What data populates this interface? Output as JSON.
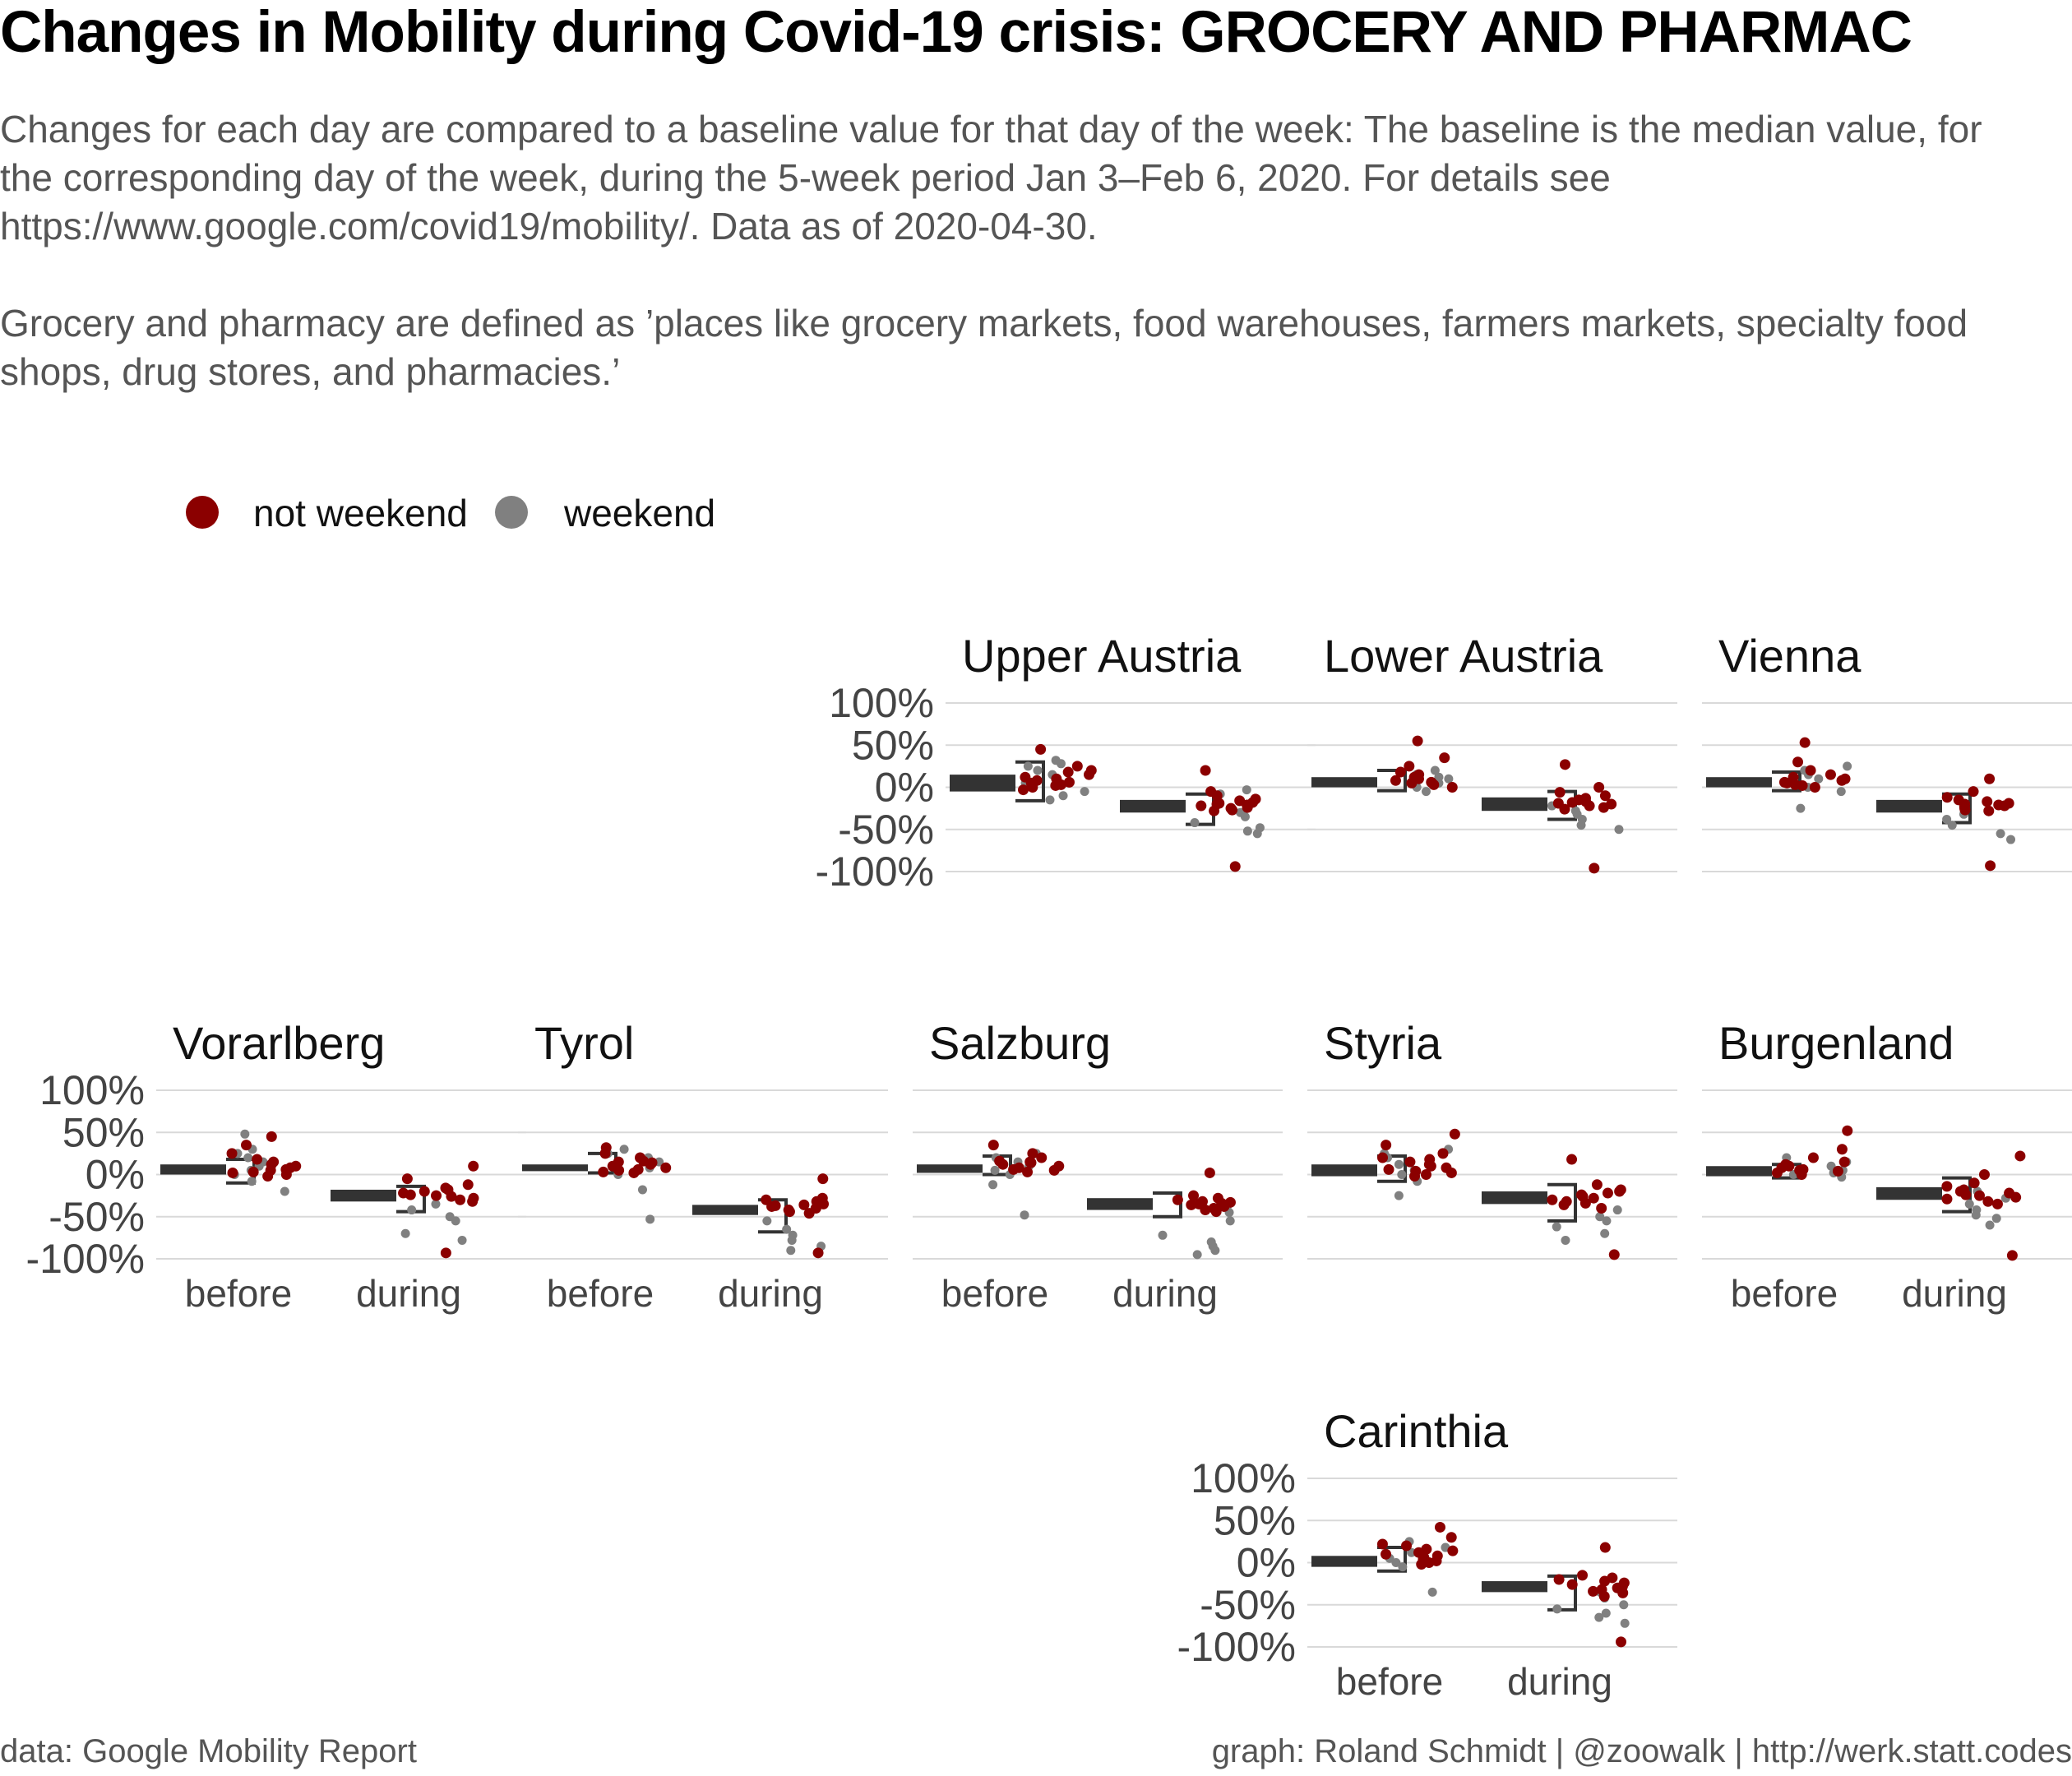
{
  "title": "Changes in Mobility during Covid-19 crisis: GROCERY AND PHARMAC",
  "subtitle_lines": [
    "Changes for each day are compared to a baseline value for that day of the week: The baseline is the median value, for the corresponding day of the week, during the 5-week period Jan 3–Feb 6, 2020. For details see https://www.google.com/covid19/mobility/. Data as of 2020-04-30.",
    "Grocery and pharmacy are defined as ’places like grocery markets, food warehouses, farmers markets, specialty food shops, drug stores, and pharmacies.’"
  ],
  "caption_left": "data: Google Mobility Report",
  "caption_right": "graph: Roland Schmidt | @zoowalk | http://werk.statt.codes",
  "colors": {
    "not_weekend": "#8B0000",
    "weekend": "#808080",
    "box": "#333333",
    "grid": "#D9D9D9"
  },
  "chart_data": {
    "type": "scatter",
    "legend": {
      "position": "top-left",
      "entries": [
        {
          "key": "not_weekend",
          "label": "not weekend"
        },
        {
          "key": "weekend",
          "label": "weekend"
        }
      ]
    },
    "y_ticks": [
      100,
      50,
      0,
      -50,
      -100
    ],
    "y_tick_labels": [
      "100%",
      "50%",
      "0%",
      "-50%",
      "-100%"
    ],
    "ylim": [
      -100,
      100
    ],
    "categories": [
      "before",
      "during"
    ],
    "grid": true,
    "panels": [
      {
        "name": "Upper Austria",
        "show_y_axis": true,
        "show_x_labels": false,
        "box": {
          "before": {
            "q1": -5,
            "median": 5,
            "q3": 15,
            "whisker_low": -16,
            "whisker_high": 30
          },
          "during": {
            "q1": -30,
            "median": -22,
            "q3": -15,
            "whisker_low": -44,
            "whisker_high": -8
          }
        },
        "not_weekend": {
          "before": [
            45,
            25,
            18,
            12,
            10,
            8,
            6,
            5,
            3,
            2,
            0,
            -3,
            15,
            20
          ],
          "during": [
            20,
            -5,
            -10,
            -14,
            -16,
            -18,
            -19,
            -20,
            -21,
            -22,
            -24,
            -25,
            -27,
            -28,
            -94
          ]
        },
        "weekend": {
          "before": [
            32,
            28,
            25,
            20,
            15,
            8,
            5,
            -5,
            -10,
            -15
          ],
          "during": [
            -3,
            -8,
            -30,
            -35,
            -42,
            -48,
            -52,
            -55
          ]
        }
      },
      {
        "name": "Lower Austria",
        "show_y_axis": false,
        "show_x_labels": false,
        "box": {
          "before": {
            "q1": 0,
            "median": 6,
            "q3": 12,
            "whisker_low": -4,
            "whisker_high": 20
          },
          "during": {
            "q1": -28,
            "median": -20,
            "q3": -12,
            "whisker_low": -38,
            "whisker_high": -5
          }
        },
        "not_weekend": {
          "before": [
            55,
            35,
            25,
            18,
            12,
            10,
            8,
            6,
            5,
            3,
            0,
            15
          ],
          "during": [
            27,
            0,
            -6,
            -10,
            -13,
            -15,
            -17,
            -18,
            -19,
            -20,
            -22,
            -24,
            -26,
            -96
          ]
        },
        "weekend": {
          "before": [
            20,
            15,
            12,
            10,
            5,
            2,
            0,
            -5
          ],
          "during": [
            -22,
            -28,
            -32,
            -38,
            -45,
            -50
          ]
        }
      },
      {
        "name": "Vienna",
        "show_y_axis": false,
        "show_x_labels": false,
        "box": {
          "before": {
            "q1": 0,
            "median": 6,
            "q3": 12,
            "whisker_low": -4,
            "whisker_high": 18
          },
          "during": {
            "q1": -30,
            "median": -22,
            "q3": -15,
            "whisker_low": -42,
            "whisker_high": -8
          }
        },
        "not_weekend": {
          "before": [
            53,
            30,
            20,
            15,
            12,
            10,
            8,
            6,
            5,
            3,
            2,
            0
          ],
          "during": [
            10,
            -5,
            -12,
            -15,
            -17,
            -19,
            -20,
            -21,
            -22,
            -23,
            -25,
            -27,
            -28,
            -93
          ]
        },
        "weekend": {
          "before": [
            25,
            20,
            15,
            10,
            5,
            0,
            -5,
            -25
          ],
          "during": [
            -25,
            -32,
            -38,
            -45,
            -55,
            -62
          ]
        }
      },
      {
        "name": "Vorarlberg",
        "show_y_axis": true,
        "show_x_labels": true,
        "box": {
          "before": {
            "q1": 0,
            "median": 6,
            "q3": 12,
            "whisker_low": -10,
            "whisker_high": 18
          },
          "during": {
            "q1": -32,
            "median": -25,
            "q3": -18,
            "whisker_low": -44,
            "whisker_high": -14
          }
        },
        "not_weekend": {
          "before": [
            45,
            35,
            25,
            18,
            15,
            12,
            10,
            8,
            6,
            5,
            3,
            2,
            0,
            -2
          ],
          "during": [
            10,
            -5,
            -12,
            -16,
            -18,
            -20,
            -22,
            -24,
            -25,
            -26,
            -28,
            -30,
            -32,
            -93
          ]
        },
        "weekend": {
          "before": [
            48,
            30,
            25,
            20,
            15,
            10,
            5,
            0,
            -8,
            -20
          ],
          "during": [
            -35,
            -42,
            -50,
            -55,
            -70,
            -78
          ]
        }
      },
      {
        "name": "Tyrol",
        "show_y_axis": false,
        "show_x_labels": true,
        "box": {
          "before": {
            "q1": 4,
            "median": 8,
            "q3": 12,
            "whisker_low": 2,
            "whisker_high": 25
          },
          "during": {
            "q1": -48,
            "median": -42,
            "q3": -36,
            "whisker_low": -68,
            "whisker_high": -30
          }
        },
        "not_weekend": {
          "before": [
            32,
            25,
            20,
            16,
            14,
            12,
            10,
            8,
            6,
            5,
            3,
            2,
            15
          ],
          "during": [
            -5,
            -28,
            -30,
            -32,
            -33,
            -35,
            -36,
            -37,
            -38,
            -40,
            -42,
            -44,
            -46,
            -93
          ]
        },
        "weekend": {
          "before": [
            30,
            25,
            20,
            15,
            8,
            0,
            -18,
            -53
          ],
          "during": [
            -40,
            -55,
            -65,
            -72,
            -78,
            -85,
            -90
          ]
        }
      },
      {
        "name": "Salzburg",
        "show_y_axis": false,
        "show_x_labels": true,
        "box": {
          "before": {
            "q1": 2,
            "median": 8,
            "q3": 12,
            "whisker_low": 0,
            "whisker_high": 22
          },
          "during": {
            "q1": -42,
            "median": -35,
            "q3": -28,
            "whisker_low": -50,
            "whisker_high": -22
          }
        },
        "not_weekend": {
          "before": [
            35,
            25,
            20,
            16,
            14,
            12,
            10,
            8,
            6,
            5,
            3,
            15
          ],
          "during": [
            2,
            -25,
            -28,
            -30,
            -32,
            -33,
            -34,
            -35,
            -36,
            -38,
            -40,
            -42,
            -44
          ]
        },
        "weekend": {
          "before": [
            25,
            20,
            15,
            10,
            5,
            0,
            -12,
            -48
          ],
          "during": [
            -38,
            -45,
            -55,
            -72,
            -80,
            -85,
            -90,
            -95
          ]
        }
      },
      {
        "name": "Styria",
        "show_y_axis": false,
        "show_x_labels": false,
        "box": {
          "before": {
            "q1": -2,
            "median": 5,
            "q3": 12,
            "whisker_low": -8,
            "whisker_high": 22
          },
          "during": {
            "q1": -35,
            "median": -27,
            "q3": -20,
            "whisker_low": -55,
            "whisker_high": -12
          }
        },
        "not_weekend": {
          "before": [
            48,
            35,
            25,
            18,
            15,
            12,
            10,
            8,
            6,
            4,
            2,
            0,
            -2,
            20
          ],
          "during": [
            18,
            -12,
            -18,
            -20,
            -22,
            -24,
            -26,
            -28,
            -30,
            -32,
            -34,
            -36,
            -40,
            -95
          ]
        },
        "weekend": {
          "before": [
            30,
            25,
            20,
            12,
            5,
            0,
            -8,
            -25
          ],
          "during": [
            -35,
            -42,
            -50,
            -55,
            -62,
            -70,
            -78
          ]
        }
      },
      {
        "name": "Burgenland",
        "show_y_axis": false,
        "show_x_labels": true,
        "box": {
          "before": {
            "q1": -2,
            "median": 3,
            "q3": 10,
            "whisker_low": -4,
            "whisker_high": 12
          },
          "during": {
            "q1": -30,
            "median": -22,
            "q3": -15,
            "whisker_low": -44,
            "whisker_high": -4
          }
        },
        "not_weekend": {
          "before": [
            52,
            30,
            20,
            15,
            12,
            10,
            8,
            6,
            5,
            4,
            2,
            0
          ],
          "during": [
            22,
            0,
            -10,
            -14,
            -18,
            -20,
            -22,
            -24,
            -25,
            -27,
            -29,
            -32,
            -35,
            -96
          ]
        },
        "weekend": {
          "before": [
            20,
            15,
            10,
            5,
            2,
            0,
            -3
          ],
          "during": [
            -20,
            -28,
            -35,
            -42,
            -48,
            -52,
            -60
          ]
        }
      },
      {
        "name": "Carinthia",
        "show_y_axis": true,
        "show_x_labels": true,
        "box": {
          "before": {
            "q1": -5,
            "median": 2,
            "q3": 8,
            "whisker_low": -10,
            "whisker_high": 18
          },
          "during": {
            "q1": -35,
            "median": -28,
            "q3": -22,
            "whisker_low": -56,
            "whisker_high": -16
          }
        },
        "not_weekend": {
          "before": [
            42,
            30,
            22,
            16,
            14,
            12,
            10,
            8,
            6,
            4,
            2,
            0,
            -2,
            20
          ],
          "during": [
            18,
            -15,
            -18,
            -20,
            -22,
            -24,
            -26,
            -28,
            -30,
            -32,
            -34,
            -36,
            -40,
            -94
          ]
        },
        "weekend": {
          "before": [
            25,
            18,
            12,
            8,
            5,
            0,
            -5,
            -35
          ],
          "during": [
            -35,
            -42,
            -50,
            -55,
            -60,
            -65,
            -72
          ]
        }
      }
    ]
  }
}
